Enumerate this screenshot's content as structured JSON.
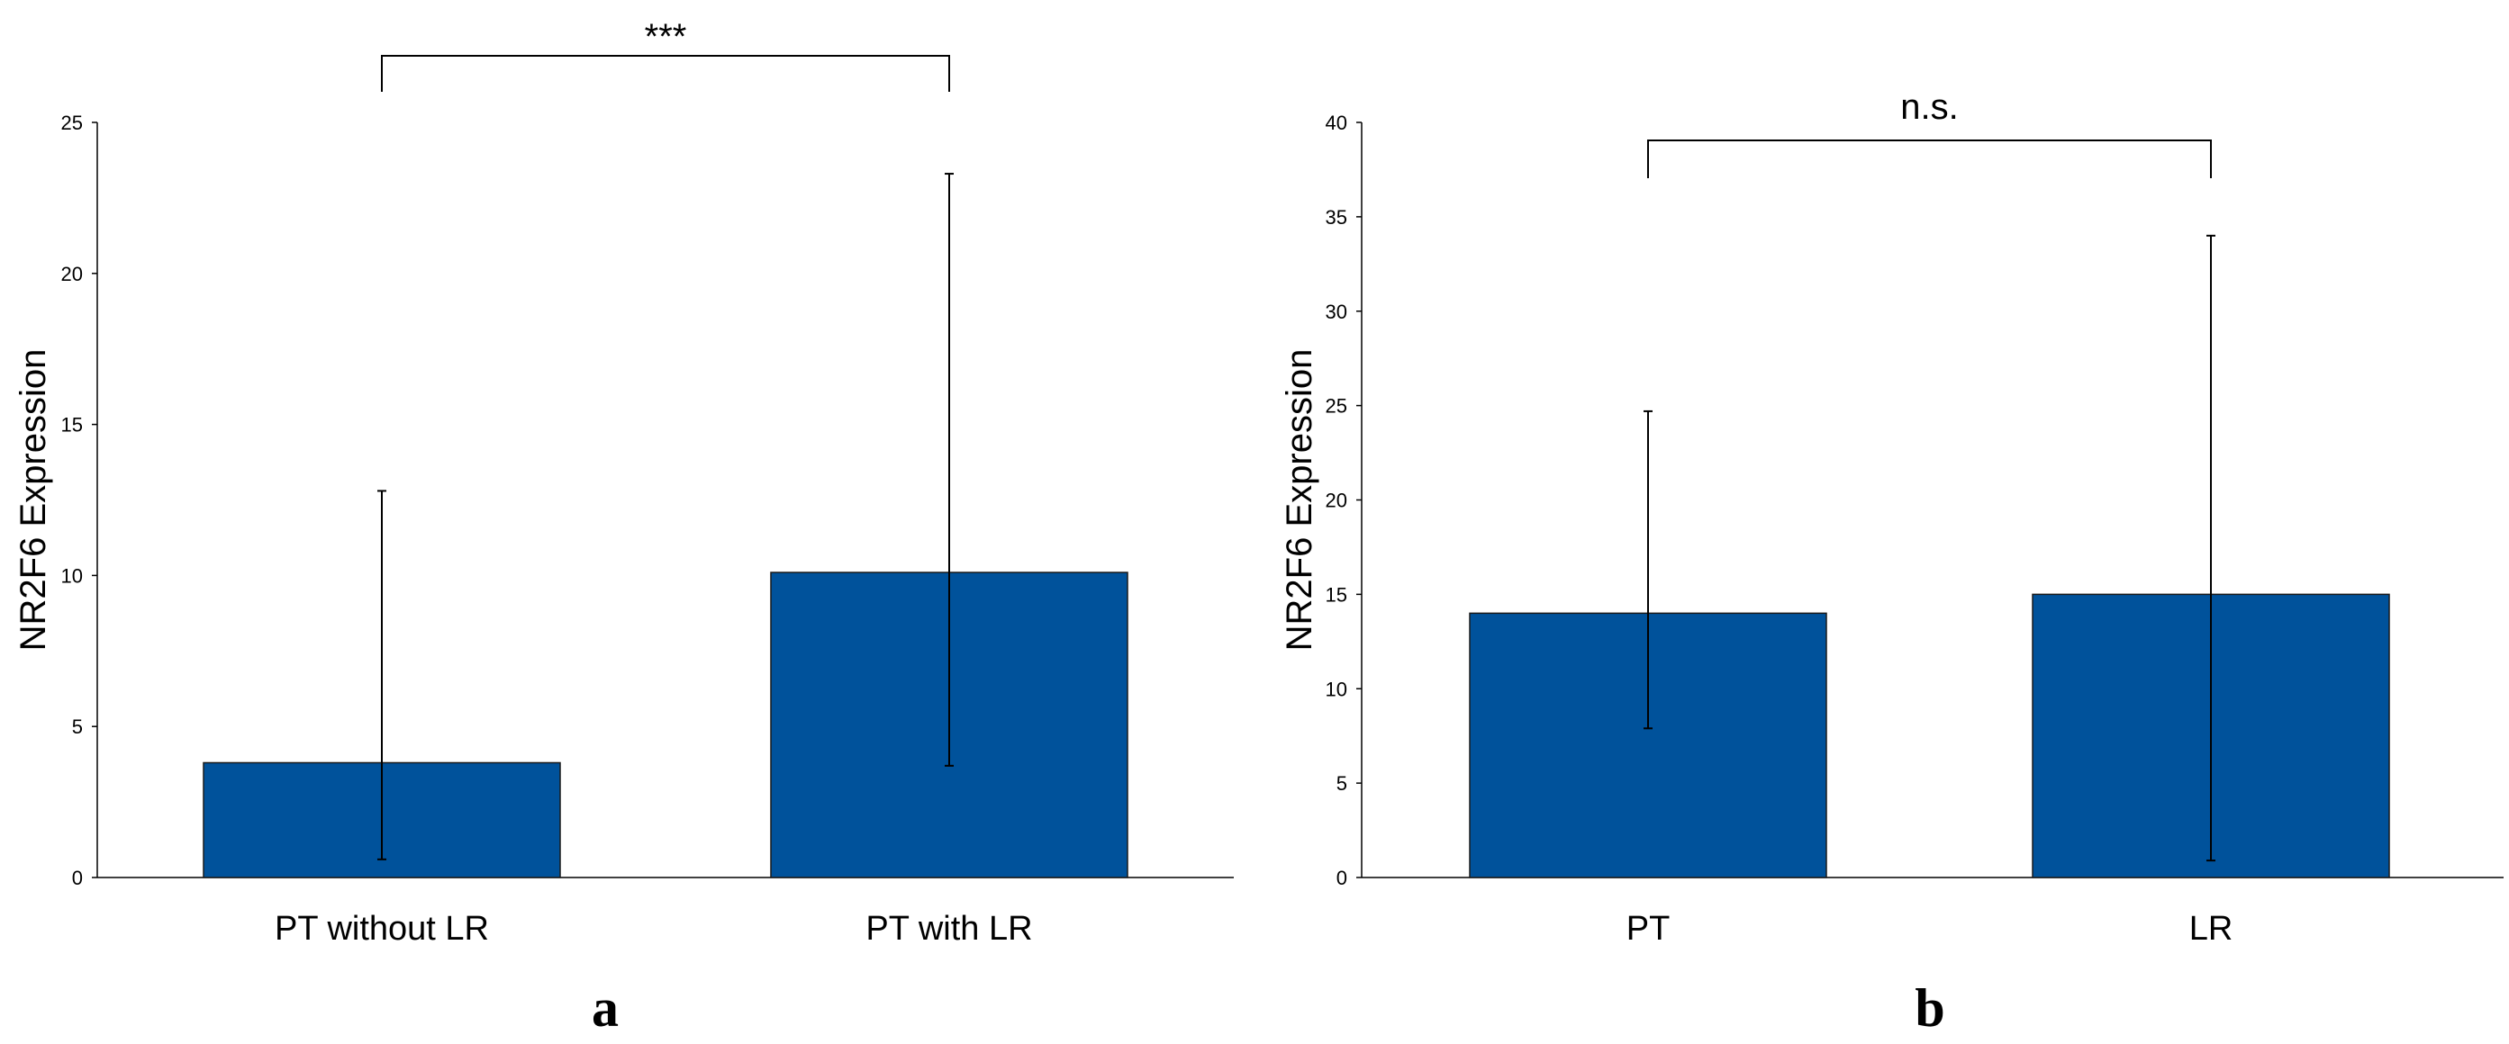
{
  "chart_data": [
    {
      "type": "bar",
      "panel_label": "a",
      "categories": [
        "PT without LR",
        "PT with LR"
      ],
      "values": [
        3.8,
        10.1
      ],
      "error_low": [
        0.6,
        3.7
      ],
      "error_high": [
        12.8,
        23.3
      ],
      "ylabel": "NR2F6 Expression",
      "xlabel": "",
      "ylim": [
        0,
        25
      ],
      "yticks": [
        0,
        5,
        10,
        15,
        20,
        25
      ],
      "significance": {
        "label": "***",
        "from": 0,
        "to": 1
      },
      "bar_color": "#00529B",
      "grid": false
    },
    {
      "type": "bar",
      "panel_label": "b",
      "categories": [
        "PT",
        "LR"
      ],
      "values": [
        14.0,
        15.0
      ],
      "error_low": [
        7.9,
        0.9
      ],
      "error_high": [
        24.7,
        34.0
      ],
      "ylabel": "NR2F6 Expression",
      "xlabel": "",
      "ylim": [
        0,
        40
      ],
      "yticks": [
        0,
        5,
        10,
        15,
        20,
        25,
        30,
        35,
        40
      ],
      "significance": {
        "label": "n.s.",
        "from": 0,
        "to": 1
      },
      "bar_color": "#00529B",
      "grid": false
    }
  ]
}
